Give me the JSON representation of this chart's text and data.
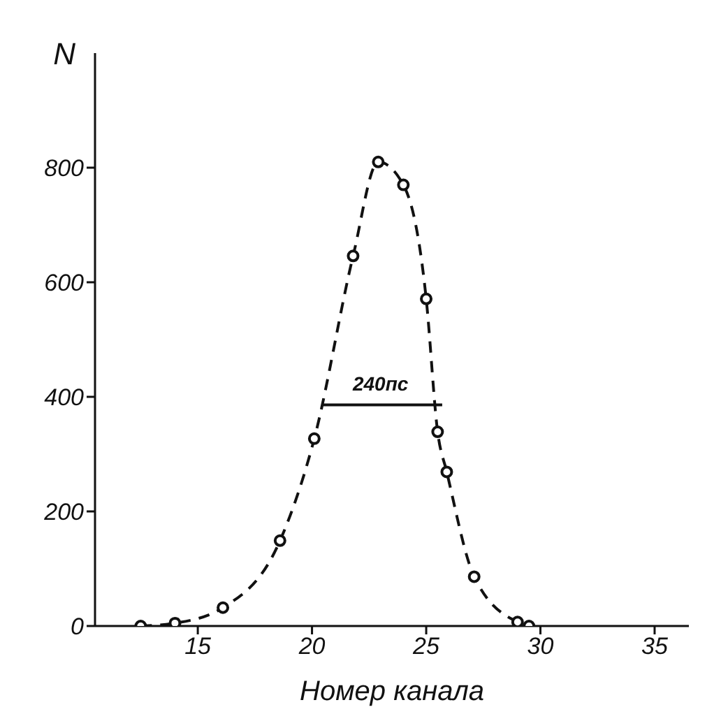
{
  "chart_data": {
    "type": "line",
    "ylabel": "N",
    "xlabel": "Номер канала",
    "xlim": [
      10.5,
      36.5
    ],
    "xticks": [
      15,
      20,
      25,
      30,
      35
    ],
    "ylim": [
      0,
      1000
    ],
    "yticks": [
      0,
      200,
      400,
      600,
      800
    ],
    "series": [
      {
        "color": "#111111",
        "line_style": "dashed",
        "marker": "circle",
        "x": [
          12.5,
          14,
          16.1,
          18.6,
          20.1,
          21.8,
          22.9,
          24,
          25,
          25.5,
          25.9,
          27.1,
          29,
          29.5
        ],
        "values": [
          0,
          5,
          32,
          149,
          327,
          646,
          810,
          770,
          571,
          339,
          269,
          86,
          7,
          0
        ]
      },
      {
        "color": "#111111",
        "line_style": "solid",
        "marker": "none",
        "x": [
          20.5,
          25.7
        ],
        "values": [
          386,
          386
        ]
      }
    ],
    "annotations": [
      {
        "text": "240пс",
        "x": 23,
        "y": 386
      }
    ]
  }
}
